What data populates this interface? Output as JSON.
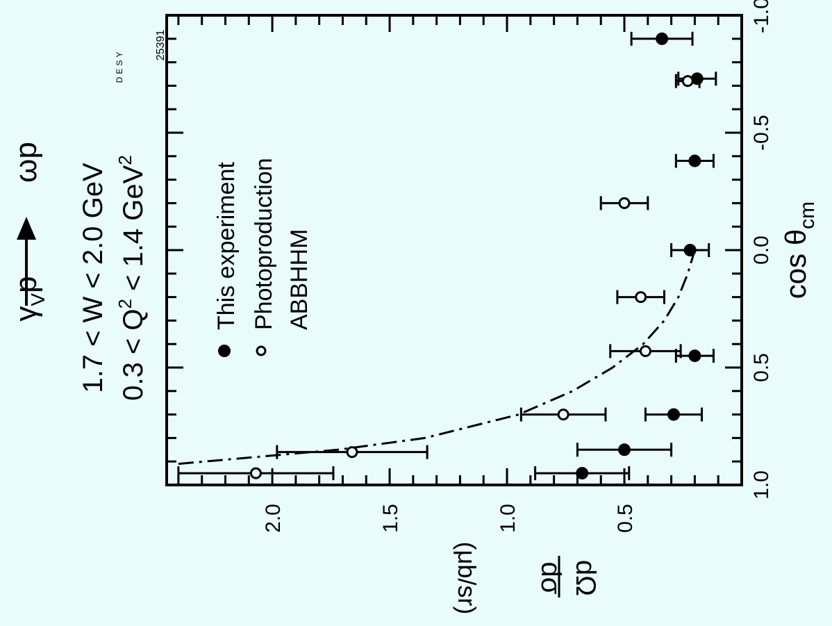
{
  "colors": {
    "background": "#e9fbfb",
    "ink": "#000000"
  },
  "labels": {
    "reaction_left": "γ",
    "reaction_sub": "V",
    "reaction_mid": "p",
    "reaction_right": "ωp",
    "w_range": "1.7 < W < 2.0 GeV",
    "q2_prefix": "0.3 < Q",
    "q2_sup": "2",
    "q2_mid": " < 1.4 GeV",
    "q2_unit_sup": "2",
    "desy_tag": "DESY",
    "plate_number": "25391"
  },
  "chart_data": {
    "type": "scatter",
    "orientation": "rotated 90° counter-clockwise",
    "xlabel": "cos θ",
    "xlabel_sub": "cm",
    "ylabel_num": "dσ",
    "ylabel_den": "dΩ",
    "ylabel_unit": "(μb/sr)",
    "xlim": [
      1.0,
      -1.0
    ],
    "ylim": [
      0.0,
      2.45
    ],
    "x_tick_labels": [
      "1.0",
      "0.5",
      "0.0",
      "-0.5",
      "-1.0"
    ],
    "x_tick_values": [
      1.0,
      0.5,
      0.0,
      -0.5,
      -1.0
    ],
    "y_tick_labels": [
      "0.5",
      "1.0",
      "1.5",
      "2.0"
    ],
    "y_tick_values": [
      0.5,
      1.0,
      1.5,
      2.0
    ],
    "legend_placement": "upper-left",
    "series": [
      {
        "name": "This experiment",
        "marker": "filled-circle",
        "x": [
          0.95,
          0.85,
          0.7,
          0.45,
          0.0,
          -0.38,
          -0.73,
          -0.9
        ],
        "y": [
          0.68,
          0.5,
          0.29,
          0.2,
          0.22,
          0.2,
          0.19,
          0.34
        ],
        "yerr": [
          0.2,
          0.2,
          0.12,
          0.08,
          0.08,
          0.08,
          0.08,
          0.13
        ]
      },
      {
        "name": "Photoproduction",
        "name_line2": "ABBHHM",
        "marker": "open-circle",
        "x": [
          0.95,
          0.86,
          0.7,
          0.43,
          0.2,
          -0.2,
          -0.72
        ],
        "y": [
          2.07,
          1.66,
          0.76,
          0.41,
          0.43,
          0.5,
          0.23
        ],
        "yerr": [
          0.33,
          0.32,
          0.18,
          0.15,
          0.1,
          0.1,
          0.05
        ]
      }
    ],
    "curve": {
      "style": "dash-dot",
      "x": [
        0.91,
        0.85,
        0.8,
        0.7,
        0.6,
        0.5,
        0.4,
        0.3,
        0.2,
        0.1,
        0.0
      ],
      "y": [
        2.4,
        1.72,
        1.35,
        0.95,
        0.72,
        0.55,
        0.42,
        0.33,
        0.27,
        0.23,
        0.2
      ]
    }
  }
}
